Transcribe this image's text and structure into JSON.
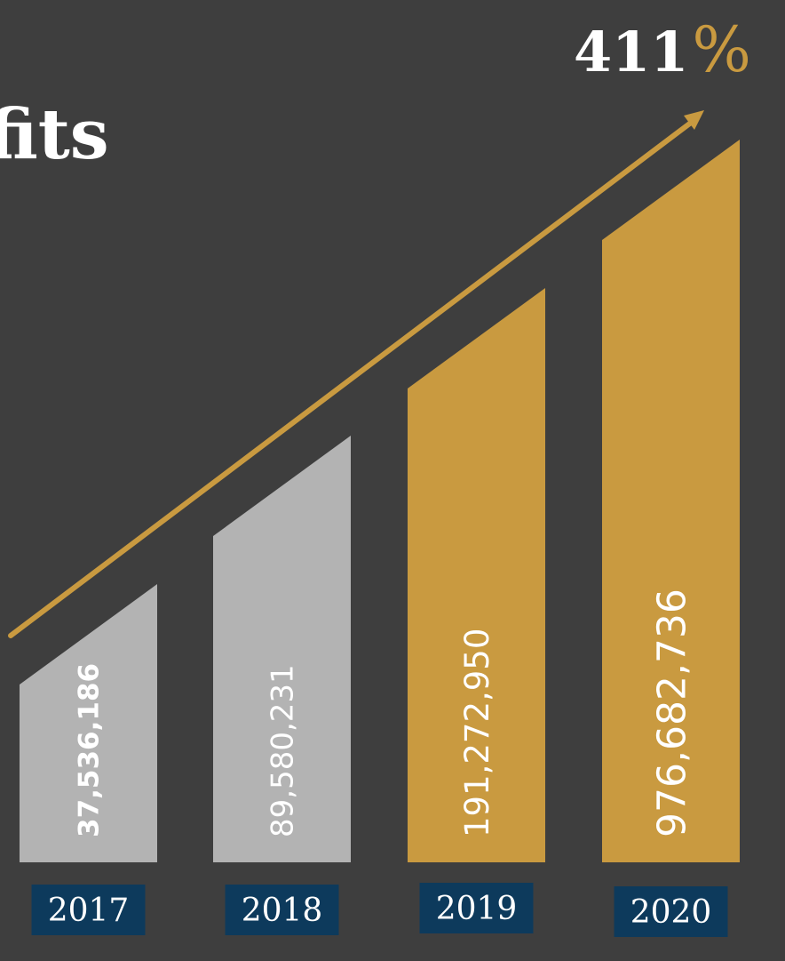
{
  "chart_data": {
    "type": "bar",
    "title": "fits",
    "categories": [
      "2017",
      "2018",
      "2019",
      "2020"
    ],
    "series": [
      {
        "values": [
          37536186,
          89580231,
          191272950,
          976682736
        ]
      }
    ],
    "data_labels": [
      "37,536,186",
      "89,580,231",
      "191,272,950",
      "976,682,736"
    ],
    "annotation": {
      "number": "411",
      "unit": "%"
    },
    "colors": {
      "background": "#3e3e3e",
      "previous_years": "#b3b3b3",
      "recent_years": "#c99a40",
      "arrow": "#c99a40",
      "year_box": "#0d3a5c"
    }
  }
}
